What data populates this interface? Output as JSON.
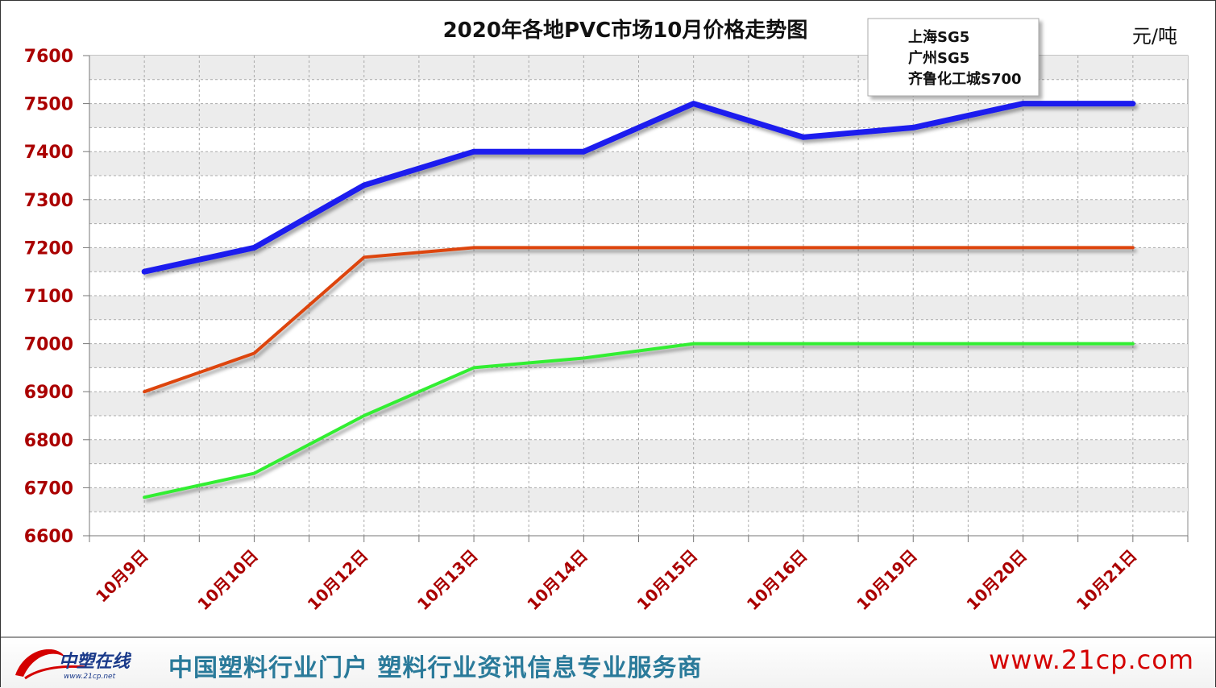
{
  "chart_data": {
    "type": "line",
    "title": "2020年各地PVC市场10月价格走势图",
    "unit": "元/吨",
    "categories": [
      "10月9日",
      "10月10日",
      "10月12日",
      "10月13日",
      "10月14日",
      "10月15日",
      "10月16日",
      "10月19日",
      "10月20日",
      "10月21日"
    ],
    "ylim": [
      6600,
      7600
    ],
    "yticks": [
      6600,
      6700,
      6800,
      6900,
      7000,
      7100,
      7200,
      7300,
      7400,
      7500,
      7600
    ],
    "grid": true,
    "legend_position": "top-right",
    "series": [
      {
        "name": "上海SG5",
        "color": "#33ee33",
        "values": [
          6680,
          6730,
          6850,
          6950,
          6970,
          7000,
          7000,
          7000,
          7000,
          7000
        ]
      },
      {
        "name": "广州SG5",
        "color": "#dd4411",
        "values": [
          6900,
          6980,
          7180,
          7200,
          7200,
          7200,
          7200,
          7200,
          7200,
          7200
        ]
      },
      {
        "name": "齐鲁化工城S700",
        "color": "#1a1aee",
        "values": [
          7150,
          7200,
          7330,
          7400,
          7400,
          7500,
          7430,
          7450,
          7500,
          7500
        ]
      }
    ]
  },
  "footer": {
    "logo_text": "中塑在线",
    "logo_sub": "www.21cp.net",
    "slogan": "中国塑料行业门户 塑料行业资讯信息专业服务商",
    "url": "www.21cp.com"
  },
  "colors": {
    "axis_label": "#aa0000",
    "footer_slogan": "#2a7a9a",
    "footer_url": "#d40000"
  }
}
